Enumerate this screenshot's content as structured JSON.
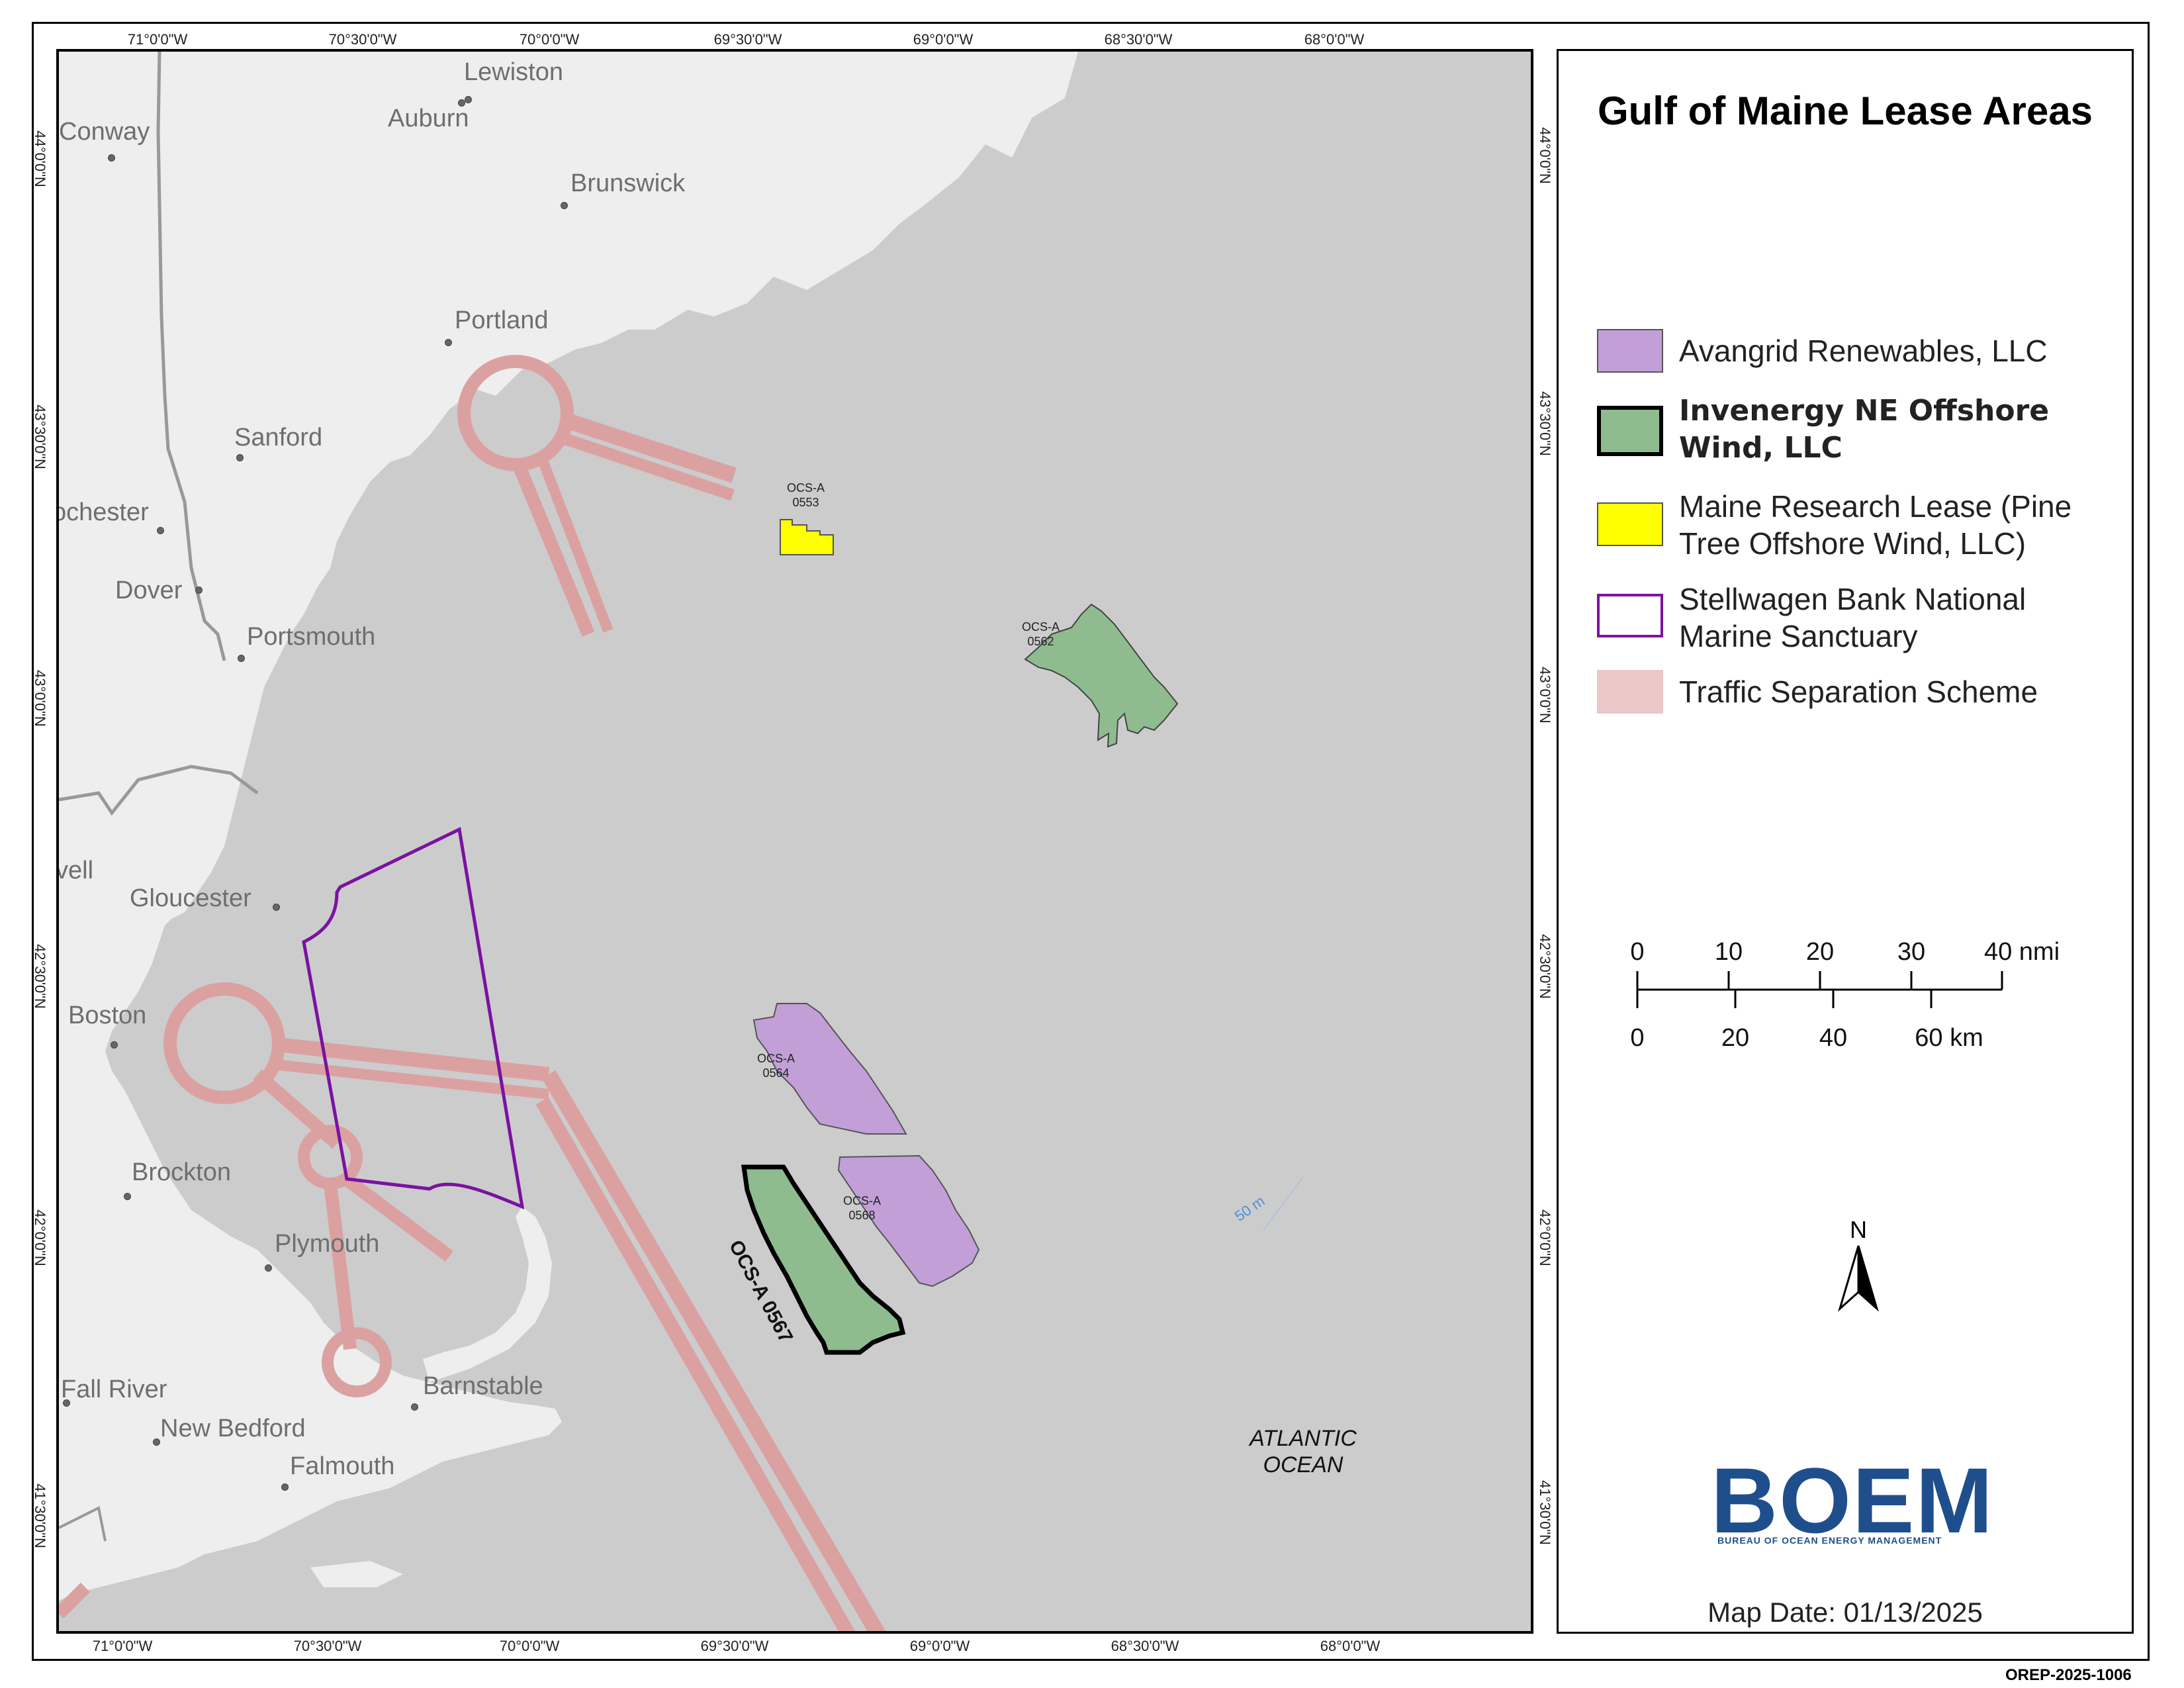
{
  "map": {
    "title": "Gulf of Maine Lease Areas",
    "map_date": "Map Date: 01/13/2025",
    "document_code": "OREP-2025-1006",
    "ocean_label_line1": "ATLANTIC",
    "ocean_label_line2": "OCEAN",
    "depth_label": "50 m",
    "colors": {
      "land": "#eeeeee",
      "water": "#cccccc",
      "avangrid": "#c39fd8",
      "invenergy": "#8fbc8f",
      "maine_research": "#ffff00",
      "sanctuary": "#7b12a0",
      "traffic": "#dba1a1"
    }
  },
  "graticule": {
    "top": [
      "71°0'0\"W",
      "70°30'0\"W",
      "70°0'0\"W",
      "69°30'0\"W",
      "69°0'0\"W",
      "68°30'0\"W",
      "68°0'0\"W"
    ],
    "bottom": [
      "71°0'0\"W",
      "70°30'0\"W",
      "70°0'0\"W",
      "69°30'0\"W",
      "69°0'0\"W",
      "68°30'0\"W",
      "68°0'0\"W"
    ],
    "left": [
      "44°0'0\"N",
      "43°30'0\"N",
      "43°0'0\"N",
      "42°30'0\"N",
      "42°0'0\"N",
      "41°30'0\"N"
    ],
    "right": [
      "44°0'0\"N",
      "43°30'0\"N",
      "43°0'0\"N",
      "42°30'0\"N",
      "42°0'0\"N",
      "41°30'0\"N"
    ]
  },
  "cities": [
    "Lewiston",
    "Auburn",
    "Conway",
    "Brunswick",
    "Portland",
    "Sanford",
    "ochester",
    "Dover",
    "Portsmouth",
    "vell",
    "Gloucester",
    "Boston",
    "Brockton",
    "Plymouth",
    "Fall River",
    "New Bedford",
    "Barnstable",
    "Falmouth"
  ],
  "leases": {
    "l0553": "OCS-A\n0553",
    "l0562": "OCS-A\n0562",
    "l0564": "OCS-A\n0564",
    "l0568": "OCS-A\n0568",
    "l0567": "OCS-A 0567"
  },
  "legend": {
    "items": [
      {
        "label": "Avangrid Renewables, LLC",
        "fill": "#c39fd8",
        "stroke": "#555555"
      },
      {
        "label": "Invenergy NE Offshore Wind, LLC",
        "fill": "#8fbc8f",
        "stroke": "#000000"
      },
      {
        "label": "Maine Research Lease (Pine Tree Offshore Wind, LLC)",
        "fill": "#ffff00",
        "stroke": "#555555"
      },
      {
        "label": "Stellwagen Bank National Marine Sanctuary",
        "fill": "#ffffff",
        "stroke": "#7b12a0"
      },
      {
        "label": "Traffic Separation Scheme",
        "fill": "#ebc7c7",
        "stroke": "#ebc7c7"
      }
    ],
    "scale_nmi": [
      "0",
      "10",
      "20",
      "30",
      "40 nmi"
    ],
    "scale_km": [
      "0",
      "20",
      "40",
      "60 km"
    ],
    "north_label": "N",
    "logo_text": "BOEM",
    "logo_subtitle": "BUREAU OF OCEAN ENERGY MANAGEMENT"
  }
}
